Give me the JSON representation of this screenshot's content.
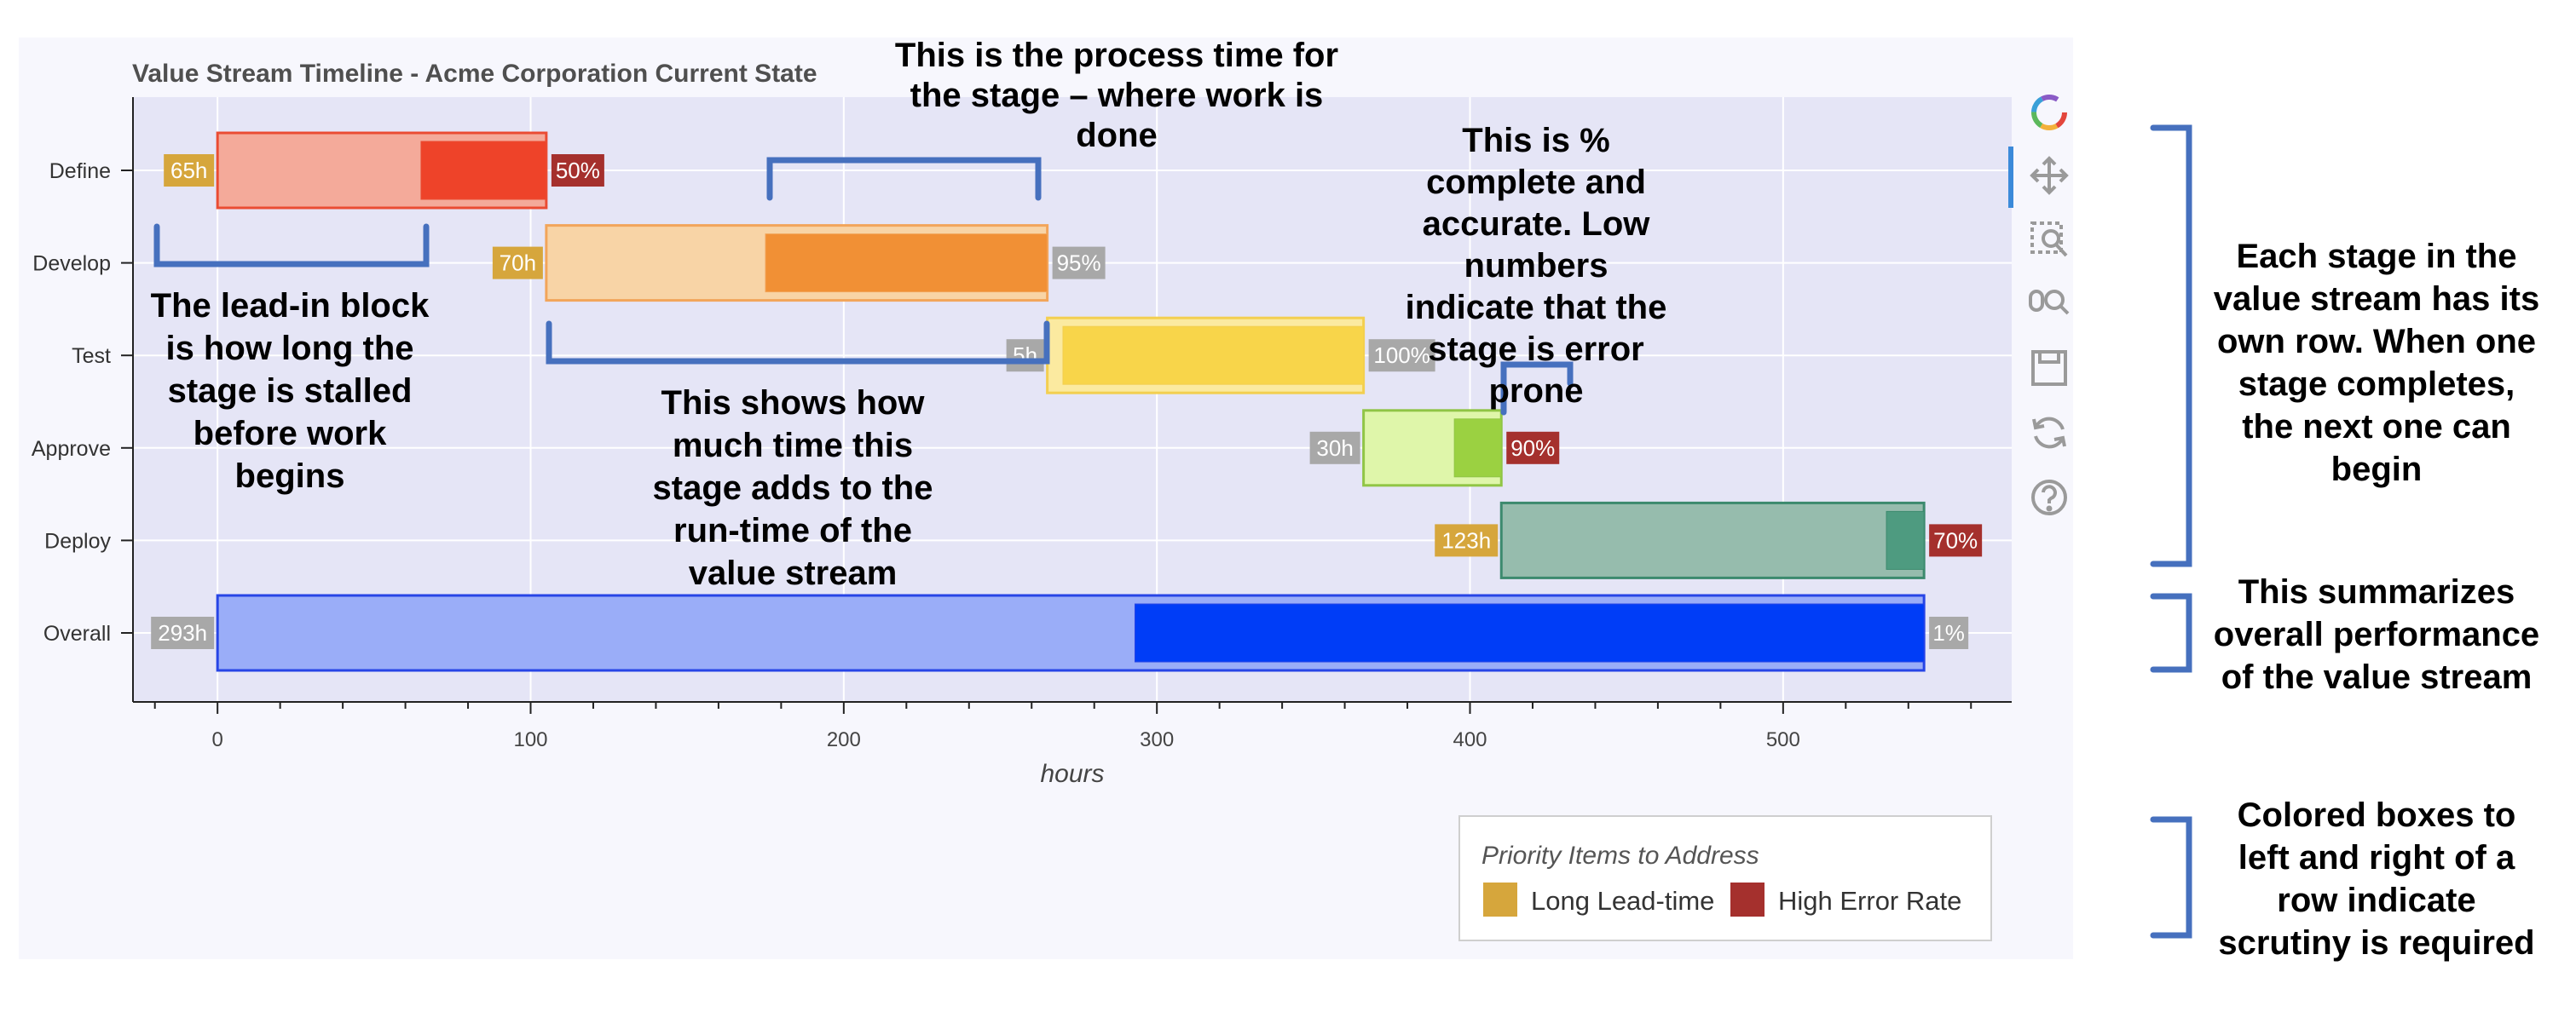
{
  "chart_data": {
    "type": "bar",
    "title": "Value Stream Timeline - Acme Corporation Current State",
    "xlabel": "hours",
    "ylabel": "",
    "xlim": [
      -27,
      573
    ],
    "x_ticks": [
      0,
      100,
      200,
      300,
      400,
      500
    ],
    "grid": true,
    "stages": [
      {
        "name": "Define",
        "lead_start": 0,
        "work_start": 65,
        "end": 105,
        "process_start": 65,
        "lead_label": "65h",
        "pct_label": "50%",
        "lead_flag": "long",
        "pct_flag": "high-error",
        "fill": "#f4aa9a",
        "inner": "#ee4329",
        "stroke": "#ea4c33"
      },
      {
        "name": "Develop",
        "lead_start": 105,
        "work_start": 105,
        "end": 265,
        "process_start": 175,
        "lead_label": "70h",
        "pct_label": "95%",
        "lead_flag": "long",
        "pct_flag": "ok",
        "fill": "#f8d4a6",
        "inner": "#f19035",
        "stroke": "#f2a55a"
      },
      {
        "name": "Test",
        "lead_start": 265,
        "work_start": 265,
        "end": 366,
        "process_start": 270,
        "lead_label": "5h",
        "pct_label": "100%",
        "lead_flag": "ok",
        "pct_flag": "ok",
        "fill": "#fbeaa0",
        "inner": "#f8d54a",
        "stroke": "#f3cf50"
      },
      {
        "name": "Approve",
        "lead_start": 366,
        "work_start": 366,
        "end": 410,
        "process_start": 395,
        "lead_label": "30h",
        "pct_label": "90%",
        "lead_flag": "ok",
        "pct_flag": "high-error",
        "fill": "#dff6aa",
        "inner": "#9bd141",
        "stroke": "#90c545"
      },
      {
        "name": "Deploy",
        "lead_start": 410,
        "work_start": 410,
        "end": 545,
        "process_start": 533,
        "lead_label": "123h",
        "pct_label": "70%",
        "lead_flag": "long",
        "pct_flag": "high-error",
        "fill": "#96bcad",
        "inner": "#4e9b80",
        "stroke": "#3c8a6e"
      },
      {
        "name": "Overall",
        "lead_start": 0,
        "work_start": 0,
        "end": 545,
        "process_start": 293,
        "lead_label": "293h",
        "pct_label": "1%",
        "lead_flag": "ok",
        "pct_flag": "ok",
        "fill": "#9aadf8",
        "inner": "#003df7",
        "stroke": "#2745e6"
      }
    ],
    "legend": {
      "title": "Priority Items to Address",
      "placement": "bottom-right",
      "items": [
        {
          "label": "Long Lead-time",
          "color": "#d6a63c"
        },
        {
          "label": "High Error Rate",
          "color": "#a5302d"
        }
      ]
    },
    "colors": {
      "long": "#d6a63c",
      "high_error": "#a5302d",
      "neutral": "#a8a8a8",
      "plot_bg": "#e5e5f6"
    }
  },
  "annotations": {
    "process_time": [
      "This is the process time for",
      "the stage – where work is",
      "done"
    ],
    "lead_in": [
      "The lead-in block",
      "is how long the",
      "stage is stalled",
      "before work",
      "begins"
    ],
    "runtime": [
      "This shows how",
      "much time this",
      "stage adds to the",
      "run-time of the",
      "value stream"
    ],
    "percent": [
      "This is %",
      "complete and",
      "accurate. Low",
      "numbers",
      "indicate that the",
      "stage is error",
      "prone"
    ],
    "rows": [
      "Each stage in the",
      "value stream has its",
      "own row. When one",
      "stage completes,",
      "the next one can",
      "begin"
    ],
    "summary": [
      "This summarizes",
      "overall performance",
      "of the value stream"
    ],
    "boxes": [
      "Colored boxes to",
      "left and right of a",
      "row indicate",
      "scrutiny is required"
    ]
  },
  "toolbar": {
    "tools": [
      "bokeh-logo-icon",
      "pan-icon",
      "box-zoom-icon",
      "wheel-zoom-icon",
      "save-icon",
      "reset-icon",
      "help-icon"
    ]
  }
}
